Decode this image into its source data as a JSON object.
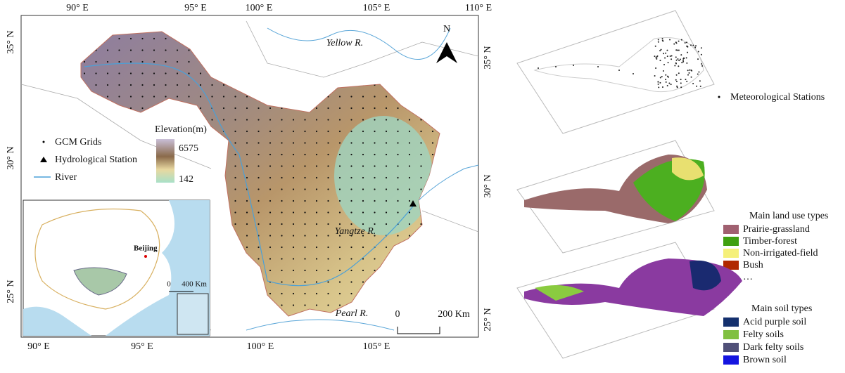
{
  "map": {
    "top_lon": [
      "90° E",
      "95° E",
      "100° E",
      "105° E",
      "110° E"
    ],
    "bottom_lon": [
      "90° E",
      "95° E",
      "100° E",
      "105° E"
    ],
    "left_lat": [
      "35° N",
      "30° N",
      "25° N"
    ],
    "right_lat": [
      "35° N",
      "30° N",
      "25° N"
    ],
    "north": "N",
    "rivers": {
      "yellow": "Yellow R.",
      "yangtze": "Yangtze R.",
      "pearl": "Pearl R."
    },
    "legend": {
      "gcm": "GCM Grids",
      "station": "Hydrological Station",
      "river": "River",
      "elevation_title": "Elevation(m)",
      "elevation_max": "6575",
      "elevation_min": "142"
    },
    "scale": {
      "zero": "0",
      "distance": "200 Km"
    },
    "inset": {
      "city": "Beijing",
      "zero": "0",
      "distance": "400 Km"
    }
  },
  "layers": {
    "stations": "Meteorological Stations",
    "land_use": {
      "title": "Main land use types",
      "items": [
        "Prairie-grassland",
        "Timber-forest",
        "Non-irrigated-field",
        "Bush"
      ],
      "more": "…"
    },
    "soil": {
      "title": "Main soil types",
      "items": [
        "Acid purple soil",
        "Felty soils",
        "Dark felty soils",
        "Brown soil"
      ]
    }
  }
}
